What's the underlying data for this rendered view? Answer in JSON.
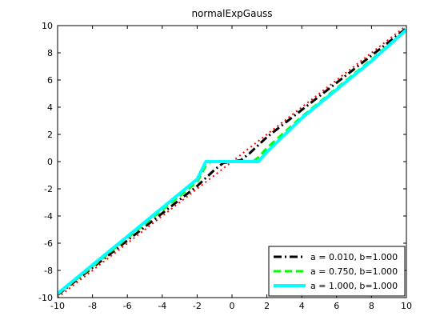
{
  "chart_data": {
    "type": "line",
    "title": "normalExpGauss",
    "xlabel": "",
    "ylabel": "",
    "xlim": [
      -10,
      10
    ],
    "ylim": [
      -10,
      10
    ],
    "xticks": [
      -10,
      -8,
      -6,
      -4,
      -2,
      0,
      2,
      4,
      6,
      8,
      10
    ],
    "yticks": [
      -10,
      -8,
      -6,
      -4,
      -2,
      0,
      2,
      4,
      6,
      8,
      10
    ],
    "grid": false,
    "legend_position": "bottom-right",
    "reference_line": {
      "x": [
        -10,
        10
      ],
      "y": [
        -10,
        10
      ],
      "color": "#ff0000",
      "style": "dotted"
    },
    "series": [
      {
        "name": "a = 0.010, b=1.000",
        "color": "#000000",
        "style": "dash-dot",
        "x": [
          -10,
          -8,
          -6,
          -4,
          -2,
          -1,
          -0.5,
          0,
          0.5,
          1,
          2,
          4,
          6,
          8,
          10
        ],
        "y": [
          -9.8,
          -7.8,
          -5.8,
          -3.8,
          -1.8,
          -0.6,
          -0.1,
          0,
          0.1,
          0.6,
          1.8,
          3.8,
          5.8,
          7.8,
          9.8
        ]
      },
      {
        "name": "a = 0.750, b=1.000",
        "color": "#00ff00",
        "style": "dashed",
        "x": [
          -10,
          -8,
          -6,
          -4,
          -2,
          -1.5,
          -1.2,
          1.2,
          1.5,
          2,
          4,
          6,
          8,
          10
        ],
        "y": [
          -9.75,
          -7.7,
          -5.6,
          -3.55,
          -1.5,
          -0.3,
          0,
          0,
          0.3,
          1.0,
          3.3,
          5.4,
          7.5,
          9.7
        ]
      },
      {
        "name": "a = 1.000, b=1.000",
        "color": "#00ffff",
        "style": "solid",
        "x": [
          -10,
          -8,
          -6,
          -4,
          -2,
          -1.5,
          1.5,
          2,
          4,
          6,
          8,
          10
        ],
        "y": [
          -9.7,
          -7.6,
          -5.5,
          -3.4,
          -1.3,
          0,
          0,
          0.7,
          3.2,
          5.3,
          7.4,
          9.7
        ]
      }
    ]
  }
}
